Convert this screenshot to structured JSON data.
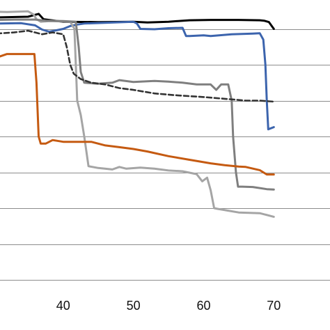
{
  "chart_data": {
    "type": "line",
    "title": "",
    "xlabel": "",
    "ylabel": "",
    "xlim": [
      31,
      78
    ],
    "ylim": [
      0,
      8
    ],
    "x_ticks": [
      40,
      50,
      60,
      70
    ],
    "grid": true,
    "grid_y_values": [
      0,
      1,
      2,
      3,
      4,
      5,
      6,
      7,
      8
    ],
    "legend": "none",
    "series": [
      {
        "color": "#000000",
        "dashed": false,
        "points": [
          [
            30.5,
            7.32
          ],
          [
            35,
            7.34
          ],
          [
            36.5,
            7.42
          ],
          [
            37.2,
            7.27
          ],
          [
            40,
            7.2
          ],
          [
            45,
            7.19
          ],
          [
            50,
            7.2
          ],
          [
            52,
            7.18
          ],
          [
            55,
            7.2
          ],
          [
            58,
            7.24
          ],
          [
            61,
            7.25
          ],
          [
            65,
            7.25
          ],
          [
            68,
            7.24
          ],
          [
            68.6,
            7.23
          ],
          [
            69.3,
            7.19
          ],
          [
            70,
            7.0
          ]
        ]
      },
      {
        "color": "#3c64ad",
        "dashed": false,
        "points": [
          [
            30.5,
            7.15
          ],
          [
            34,
            7.16
          ],
          [
            36,
            7.1
          ],
          [
            37,
            6.98
          ],
          [
            38,
            6.92
          ],
          [
            40,
            7.0
          ],
          [
            41,
            7.08
          ],
          [
            42,
            7.12
          ],
          [
            43,
            7.15
          ],
          [
            50,
            7.2
          ],
          [
            50.5,
            7.15
          ],
          [
            51,
            7.0
          ],
          [
            53,
            6.99
          ],
          [
            55,
            7.02
          ],
          [
            57,
            7.03
          ],
          [
            57.5,
            6.8
          ],
          [
            58,
            6.8
          ],
          [
            60,
            6.82
          ],
          [
            61,
            6.8
          ],
          [
            64,
            6.85
          ],
          [
            67,
            6.87
          ],
          [
            68,
            6.88
          ],
          [
            68.5,
            6.7
          ],
          [
            68.8,
            6.0
          ],
          [
            69,
            5.0
          ],
          [
            69.2,
            4.2
          ],
          [
            70,
            4.26
          ]
        ]
      },
      {
        "color": "#a5a5a5",
        "dashed": false,
        "points": [
          [
            30.5,
            7.48
          ],
          [
            32,
            7.47
          ],
          [
            35,
            7.49
          ],
          [
            35.8,
            7.4
          ],
          [
            36.2,
            7.27
          ],
          [
            36.8,
            7.2
          ],
          [
            38,
            7.22
          ],
          [
            40,
            7.21
          ],
          [
            41,
            7.2
          ],
          [
            41.6,
            7.0
          ],
          [
            42,
            5.0
          ],
          [
            42.5,
            4.6
          ],
          [
            43,
            4.0
          ],
          [
            43.6,
            3.17
          ],
          [
            45,
            3.12
          ],
          [
            47,
            3.08
          ],
          [
            48,
            3.15
          ],
          [
            49,
            3.1
          ],
          [
            51,
            3.13
          ],
          [
            53,
            3.1
          ],
          [
            55,
            3.05
          ],
          [
            57,
            3.03
          ],
          [
            59,
            2.95
          ],
          [
            59.8,
            2.75
          ],
          [
            60.5,
            2.85
          ],
          [
            61,
            2.5
          ],
          [
            61.5,
            2.0
          ],
          [
            62,
            1.98
          ],
          [
            65,
            1.88
          ],
          [
            68,
            1.86
          ],
          [
            70,
            1.76
          ]
        ]
      },
      {
        "color": "#7f7f7f",
        "dashed": false,
        "points": [
          [
            30.5,
            7.25
          ],
          [
            33,
            7.26
          ],
          [
            36,
            7.26
          ],
          [
            37.5,
            7.23
          ],
          [
            40,
            7.22
          ],
          [
            41.8,
            7.2
          ],
          [
            42.2,
            6.5
          ],
          [
            42.5,
            5.8
          ],
          [
            43,
            5.5
          ],
          [
            45,
            5.47
          ],
          [
            47,
            5.5
          ],
          [
            48,
            5.57
          ],
          [
            50,
            5.52
          ],
          [
            53,
            5.55
          ],
          [
            55,
            5.53
          ],
          [
            57,
            5.5
          ],
          [
            59,
            5.45
          ],
          [
            61,
            5.45
          ],
          [
            61.8,
            5.3
          ],
          [
            62.5,
            5.45
          ],
          [
            63.5,
            5.45
          ],
          [
            64,
            5.0
          ],
          [
            64.2,
            4.0
          ],
          [
            64.6,
            3.0
          ],
          [
            64.9,
            2.6
          ],
          [
            65.5,
            2.6
          ],
          [
            67,
            2.59
          ],
          [
            69,
            2.53
          ],
          [
            70,
            2.52
          ]
        ]
      },
      {
        "color": "#c55a11",
        "dashed": false,
        "points": [
          [
            30.5,
            6.2
          ],
          [
            32,
            6.3
          ],
          [
            35,
            6.3
          ],
          [
            35.9,
            6.3
          ],
          [
            36.2,
            5.5
          ],
          [
            36.5,
            4.0
          ],
          [
            36.8,
            3.8
          ],
          [
            37.5,
            3.8
          ],
          [
            38.5,
            3.9
          ],
          [
            40,
            3.85
          ],
          [
            42,
            3.85
          ],
          [
            44,
            3.85
          ],
          [
            46,
            3.75
          ],
          [
            48,
            3.7
          ],
          [
            50,
            3.65
          ],
          [
            52,
            3.58
          ],
          [
            55,
            3.45
          ],
          [
            58,
            3.35
          ],
          [
            61,
            3.25
          ],
          [
            63,
            3.2
          ],
          [
            65,
            3.16
          ],
          [
            66,
            3.15
          ],
          [
            68,
            3.06
          ],
          [
            69,
            2.94
          ],
          [
            70,
            2.94
          ]
        ]
      },
      {
        "color": "#333333",
        "dashed": true,
        "points": [
          [
            30.5,
            6.87
          ],
          [
            33,
            6.9
          ],
          [
            35,
            6.95
          ],
          [
            37,
            6.85
          ],
          [
            38.5,
            6.9
          ],
          [
            40,
            6.85
          ],
          [
            40.5,
            6.5
          ],
          [
            41,
            6.0
          ],
          [
            41.5,
            5.75
          ],
          [
            42.5,
            5.6
          ],
          [
            44,
            5.5
          ],
          [
            46,
            5.45
          ],
          [
            48,
            5.35
          ],
          [
            50,
            5.3
          ],
          [
            53,
            5.2
          ],
          [
            56,
            5.15
          ],
          [
            60,
            5.1
          ],
          [
            63,
            5.05
          ],
          [
            66,
            5.0
          ],
          [
            68,
            5.0
          ],
          [
            70,
            4.97
          ]
        ]
      }
    ]
  }
}
